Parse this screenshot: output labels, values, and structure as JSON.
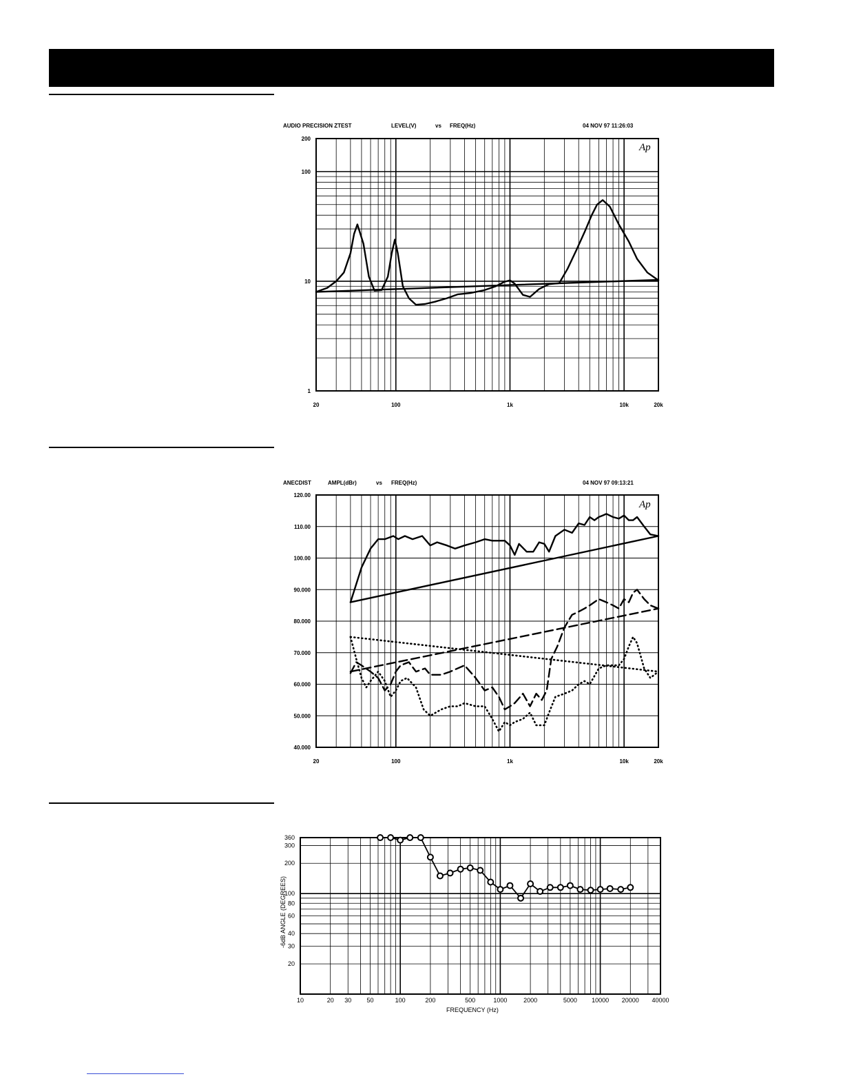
{
  "charts": [
    {
      "header": {
        "left": "AUDIO PRECISION ZTEST",
        "mid1": "LEVEL(V)",
        "mid2": "vs",
        "mid3": "FREQ(Hz)",
        "right": "04 NOV 97 11:26:03"
      },
      "logo": "Ap"
    },
    {
      "header": {
        "left": "ANECDIST",
        "mid1": "AMPL(dBr)",
        "mid2": "vs",
        "mid3": "FREQ(Hz)",
        "right": "04 NOV 97 09:13:21"
      },
      "logo": "Ap"
    },
    {
      "ylabel": "-6dB ANGLE (DEGREES)",
      "xlabel": "FREQUENCY (Hz)"
    }
  ],
  "chart_data": [
    {
      "type": "line",
      "xscale": "log",
      "yscale": "log",
      "xlim": [
        20,
        20000
      ],
      "ylim": [
        1,
        200
      ],
      "xticks": [
        {
          "v": 20,
          "label": "20"
        },
        {
          "v": 100,
          "label": "100"
        },
        {
          "v": 1000,
          "label": "1k"
        },
        {
          "v": 10000,
          "label": "10k"
        },
        {
          "v": 20000,
          "label": "20k"
        }
      ],
      "yticks": [
        {
          "v": 1,
          "label": "1"
        },
        {
          "v": 10,
          "label": "10"
        },
        {
          "v": 100,
          "label": "100"
        },
        {
          "v": 200,
          "label": "200"
        }
      ],
      "series": [
        {
          "style": "solid",
          "x": [
            20,
            25,
            30,
            35,
            40,
            43,
            46,
            52,
            58,
            65,
            75,
            85,
            92,
            98,
            104,
            115,
            130,
            150,
            180,
            220,
            280,
            350,
            450,
            600,
            750,
            900,
            1000,
            1100,
            1300,
            1500,
            1800,
            2200,
            2700,
            3200,
            3800,
            4500,
            5200,
            5800,
            6500,
            7500,
            9000,
            11000,
            13000,
            16000,
            20000
          ],
          "y": [
            8,
            8.7,
            10,
            12,
            18,
            27,
            33,
            22,
            11,
            8.2,
            8.3,
            11,
            18,
            24,
            18,
            9,
            7,
            6.1,
            6.2,
            6.5,
            7,
            7.6,
            7.8,
            8.3,
            9,
            9.9,
            10.2,
            9.5,
            7.5,
            7.2,
            8.5,
            9.4,
            9.6,
            13,
            19,
            28,
            40,
            50,
            55,
            48,
            33,
            23,
            16,
            12,
            10.2
          ]
        },
        {
          "style": "solid",
          "x": [
            20,
            20000
          ],
          "y": [
            8,
            10.3
          ]
        }
      ]
    },
    {
      "type": "line",
      "xscale": "log",
      "xlim": [
        20,
        20000
      ],
      "ylim": [
        40,
        120
      ],
      "xticks": [
        {
          "v": 20,
          "label": "20"
        },
        {
          "v": 100,
          "label": "100"
        },
        {
          "v": 1000,
          "label": "1k"
        },
        {
          "v": 10000,
          "label": "10k"
        },
        {
          "v": 20000,
          "label": "20k"
        }
      ],
      "yticks": [
        {
          "v": 120,
          "label": "120.00"
        },
        {
          "v": 110,
          "label": "110.00"
        },
        {
          "v": 100,
          "label": "100.00"
        },
        {
          "v": 90,
          "label": "90.000"
        },
        {
          "v": 80,
          "label": "80.000"
        },
        {
          "v": 70,
          "label": "70.000"
        },
        {
          "v": 60,
          "label": "60.000"
        },
        {
          "v": 50,
          "label": "50.000"
        },
        {
          "v": 40,
          "label": "40.000"
        }
      ],
      "series": [
        {
          "style": "solid",
          "x": [
            40,
            50,
            60,
            70,
            80,
            95,
            105,
            120,
            140,
            170,
            200,
            230,
            280,
            330,
            400,
            500,
            600,
            700,
            800,
            900,
            1000,
            1100,
            1200,
            1400,
            1600,
            1800,
            2000,
            2200,
            2500,
            3000,
            3500,
            4000,
            4500,
            5000,
            5500,
            6000,
            6500,
            7000,
            8000,
            9000,
            10000,
            11000,
            12000,
            13000,
            15000,
            17000,
            20000
          ],
          "y": [
            86,
            97,
            103,
            106,
            106,
            107,
            106,
            107,
            106,
            107,
            104,
            105,
            104,
            103,
            104,
            105,
            106,
            105.5,
            105.5,
            105.5,
            104,
            101,
            104.5,
            102,
            102,
            105,
            104.5,
            102,
            107,
            109,
            108,
            111,
            110.5,
            113,
            112,
            113,
            113.5,
            114,
            113,
            112.5,
            113.5,
            112,
            112,
            113,
            110,
            107.5,
            107
          ]
        },
        {
          "style": "solid",
          "x": [
            40,
            20000
          ],
          "y": [
            86,
            107
          ]
        },
        {
          "style": "dashed",
          "x": [
            40,
            45,
            50,
            60,
            70,
            80,
            90,
            100,
            110,
            130,
            150,
            180,
            200,
            250,
            300,
            400,
            500,
            600,
            700,
            800,
            900,
            1000,
            1100,
            1300,
            1500,
            1700,
            1900,
            2100,
            2300,
            2600,
            3000,
            3500,
            4000,
            4500,
            5000,
            6000,
            7000,
            8000,
            9000,
            10000,
            11000,
            12000,
            13000,
            15000,
            17000,
            20000
          ],
          "y": [
            63.5,
            67,
            66,
            64,
            62,
            58,
            60,
            64,
            66,
            67,
            64,
            65,
            63,
            63,
            64,
            66,
            62,
            58,
            59,
            56,
            52,
            53,
            54,
            57,
            53,
            57,
            55,
            58,
            68,
            72,
            78,
            82,
            83,
            84,
            85,
            87,
            86,
            85,
            84,
            87,
            86,
            89,
            90,
            87,
            85,
            84
          ]
        },
        {
          "style": "dashed",
          "x": [
            40,
            20000
          ],
          "y": [
            64,
            84
          ]
        },
        {
          "style": "dotted",
          "x": [
            40,
            45,
            50,
            55,
            60,
            70,
            80,
            90,
            100,
            110,
            125,
            150,
            175,
            200,
            250,
            300,
            350,
            400,
            500,
            600,
            700,
            800,
            900,
            1000,
            1100,
            1300,
            1500,
            1700,
            2000,
            2200,
            2500,
            3000,
            3500,
            4000,
            4500,
            5000,
            6000,
            7000,
            8000,
            9000,
            10000,
            11000,
            12000,
            13000,
            15000,
            17000,
            20000
          ],
          "y": [
            75,
            68,
            62,
            59,
            61,
            64,
            61,
            56,
            58,
            61,
            62,
            59,
            52,
            50,
            52,
            53,
            53,
            54,
            53,
            53,
            49,
            45,
            48,
            47,
            48,
            49,
            51,
            47,
            47,
            51,
            56,
            57,
            58,
            60,
            61,
            60,
            65,
            66,
            66,
            66,
            68,
            72,
            75,
            73,
            65,
            62,
            64
          ]
        },
        {
          "style": "dotted",
          "x": [
            40,
            20000
          ],
          "y": [
            75,
            64
          ]
        }
      ]
    },
    {
      "type": "line",
      "xscale": "log",
      "yscale": "log",
      "xlim": [
        10,
        40000
      ],
      "ylim": [
        10,
        360
      ],
      "xticks": [
        {
          "v": 10,
          "label": "10"
        },
        {
          "v": 20,
          "label": "20"
        },
        {
          "v": 30,
          "label": "30"
        },
        {
          "v": 50,
          "label": "50"
        },
        {
          "v": 100,
          "label": "100"
        },
        {
          "v": 200,
          "label": "200"
        },
        {
          "v": 500,
          "label": "500"
        },
        {
          "v": 1000,
          "label": "1000"
        },
        {
          "v": 2000,
          "label": "2000"
        },
        {
          "v": 5000,
          "label": "5000"
        },
        {
          "v": 10000,
          "label": "10000"
        },
        {
          "v": 20000,
          "label": "20000"
        },
        {
          "v": 40000,
          "label": "40000"
        }
      ],
      "yticks": [
        {
          "v": 20,
          "label": "20"
        },
        {
          "v": 30,
          "label": "30"
        },
        {
          "v": 40,
          "label": "40"
        },
        {
          "v": 60,
          "label": "60"
        },
        {
          "v": 80,
          "label": "80"
        },
        {
          "v": 100,
          "label": "100"
        },
        {
          "v": 200,
          "label": "200"
        },
        {
          "v": 300,
          "label": "300"
        },
        {
          "v": 360,
          "label": "360"
        }
      ],
      "series": [
        {
          "style": "solid-markers",
          "x": [
            63,
            80,
            100,
            125,
            160,
            200,
            250,
            315,
            400,
            500,
            630,
            800,
            1000,
            1250,
            1600,
            2000,
            2500,
            3150,
            4000,
            5000,
            6300,
            8000,
            10000,
            12500,
            16000,
            20000
          ],
          "y": [
            360,
            360,
            340,
            360,
            360,
            230,
            150,
            160,
            175,
            180,
            170,
            130,
            110,
            120,
            90,
            125,
            105,
            115,
            115,
            120,
            110,
            108,
            110,
            112,
            110,
            115
          ]
        }
      ]
    }
  ]
}
